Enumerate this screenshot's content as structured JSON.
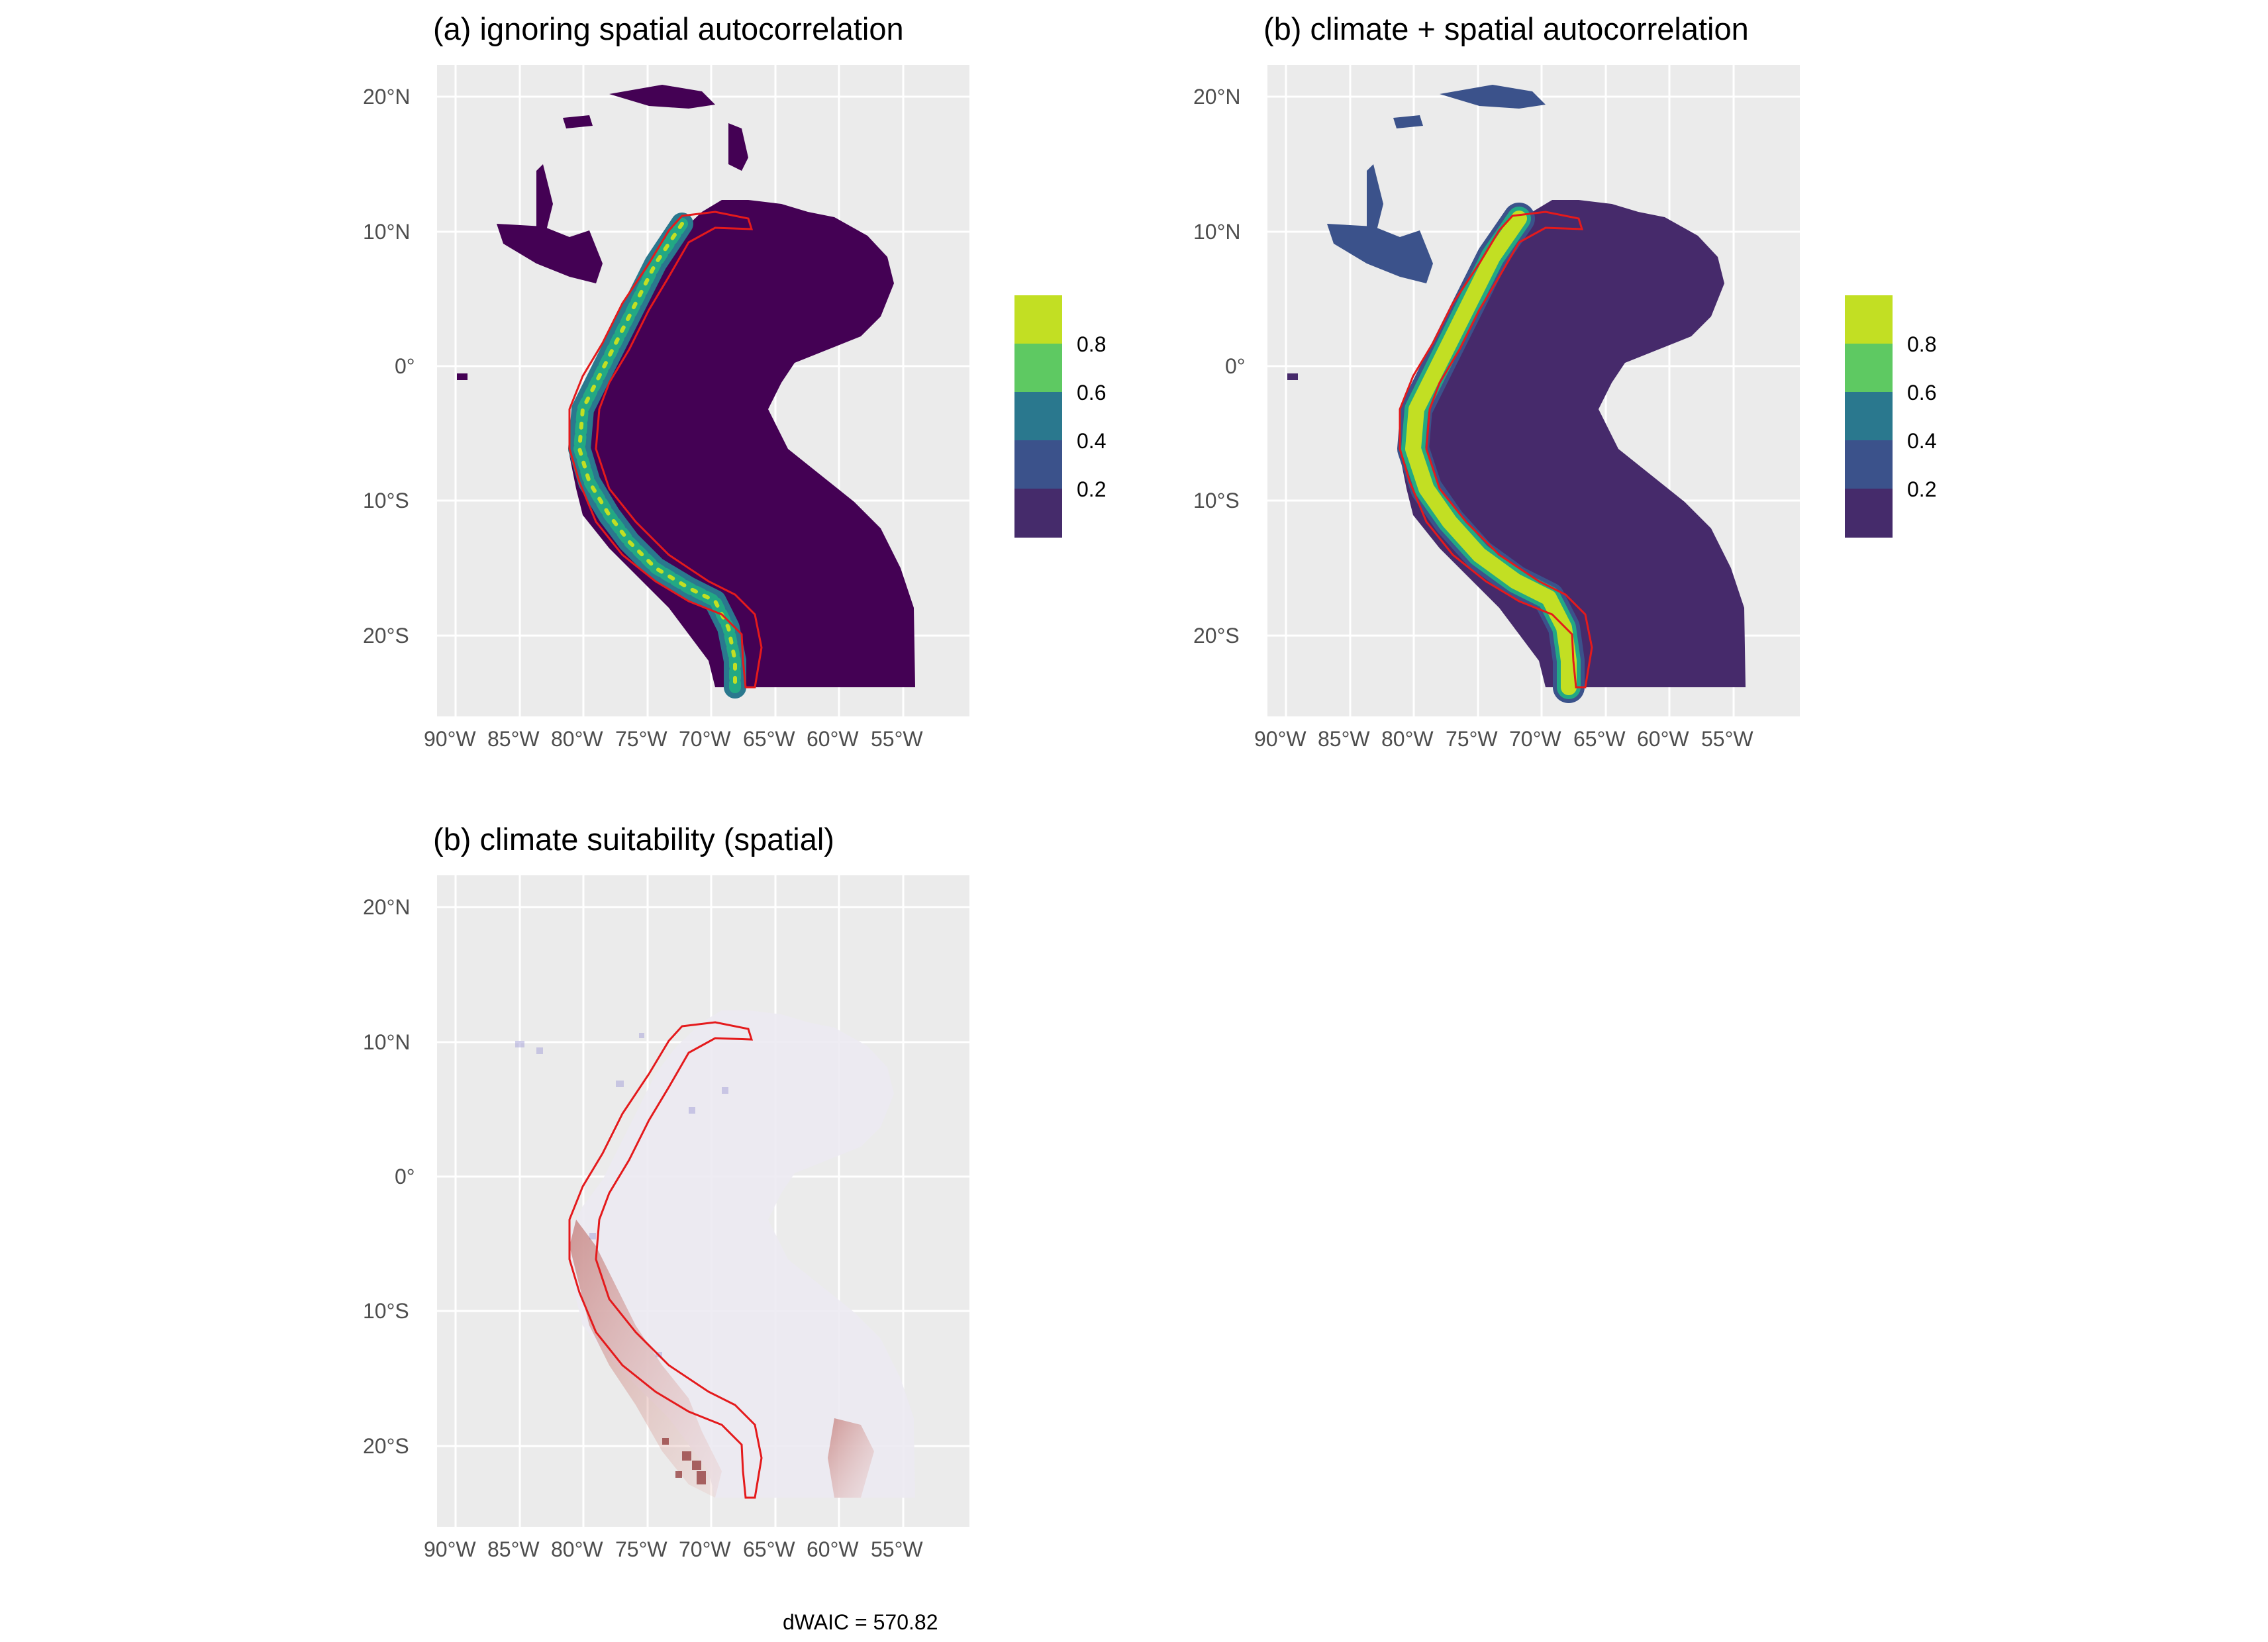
{
  "panels": [
    {
      "id": "a",
      "title": "(a) ignoring spatial autocorrelation",
      "y_ticks": [
        "20°N",
        "10°N",
        "0°",
        "10°S",
        "20°S"
      ],
      "x_ticks": [
        "90°W",
        "85°W",
        "80°W",
        "75°W",
        "70°W",
        "65°W",
        "60°W",
        "55°W"
      ],
      "legend": [
        "0.8",
        "0.6",
        "0.4",
        "0.2"
      ]
    },
    {
      "id": "b",
      "title": "(b) climate + spatial autocorrelation",
      "y_ticks": [
        "20°N",
        "10°N",
        "0°",
        "10°S",
        "20°S"
      ],
      "x_ticks": [
        "90°W",
        "85°W",
        "80°W",
        "75°W",
        "70°W",
        "65°W",
        "60°W",
        "55°W"
      ],
      "legend": [
        "0.8",
        "0.6",
        "0.4",
        "0.2"
      ]
    },
    {
      "id": "c",
      "title": "(b) climate suitability (spatial)",
      "y_ticks": [
        "20°N",
        "10°N",
        "0°",
        "10°S",
        "20°S"
      ],
      "x_ticks": [
        "90°W",
        "85°W",
        "80°W",
        "75°W",
        "70°W",
        "65°W",
        "60°W",
        "55°W"
      ]
    }
  ],
  "footer": {
    "dwaic": "dWAIC = 570.82"
  },
  "colors": {
    "panel_bg": "#ebebeb",
    "grid": "#ffffff",
    "land_low": "#440154",
    "viridis": [
      "#414487",
      "#2a788e",
      "#22a884",
      "#7ad151",
      "#c2df23"
    ],
    "range_outline": "#e41a1c",
    "diverging_neg": "#8b2c2c",
    "diverging_pos": "#8080c8"
  },
  "map_data": {
    "lon_range": [
      -92,
      -52
    ],
    "lat_range": [
      -26,
      22
    ],
    "lon_ticks": [
      -90,
      -85,
      -80,
      -75,
      -70,
      -65,
      -60,
      -55
    ],
    "lat_ticks": [
      20,
      10,
      0,
      -10,
      -20
    ],
    "legend_breaks": [
      0.2,
      0.4,
      0.6,
      0.8
    ]
  }
}
